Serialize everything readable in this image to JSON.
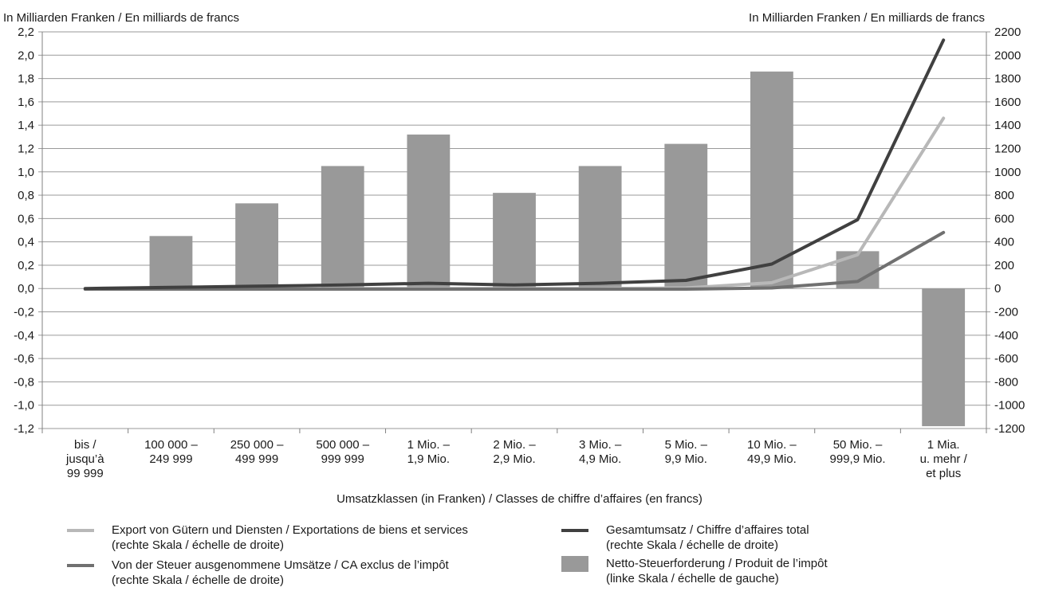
{
  "chart_data": {
    "type": "bar",
    "left_axis_title": "In Milliarden Franken / En milliards de francs",
    "right_axis_title": "In Milliarden Franken / En milliards de francs",
    "xlabel": "Umsatzklassen (in Franken) / Classes de chiffre d’affaires (en francs)",
    "categories": [
      [
        "bis /",
        "jusqu’à",
        "99 999"
      ],
      [
        "100 000 –",
        "249 999"
      ],
      [
        "250 000 –",
        "499 999"
      ],
      [
        "500 000 –",
        "999 999"
      ],
      [
        "1 Mio. –",
        "1,9 Mio."
      ],
      [
        "2 Mio. –",
        "2,9 Mio."
      ],
      [
        "3 Mio. –",
        "4,9 Mio."
      ],
      [
        "5 Mio. –",
        "9,9 Mio."
      ],
      [
        "10 Mio. –",
        "49,9 Mio."
      ],
      [
        "50 Mio. –",
        "999,9 Mio."
      ],
      [
        "1 Mia.",
        "u. mehr /",
        "et plus"
      ]
    ],
    "left_axis": {
      "ylim": [
        -1.2,
        2.2
      ],
      "ticks": [
        "2,2",
        "2,0",
        "1,8",
        "1,6",
        "1,4",
        "1,2",
        "1,0",
        "0,8",
        "0,6",
        "0,4",
        "0,2",
        "0,0",
        "-0,2",
        "-0,4",
        "-0,6",
        "-0,8",
        "-1,0",
        "-1,2"
      ]
    },
    "right_axis": {
      "ylim": [
        -1200,
        2200
      ],
      "ticks": [
        "2200",
        "2000",
        "1800",
        "1600",
        "1400",
        "1200",
        "1000",
        "800",
        "600",
        "400",
        "200",
        "0",
        "-200",
        "-400",
        "-600",
        "-800",
        "-1000",
        "-1200"
      ]
    },
    "grid": true,
    "series": [
      {
        "name": "Netto-Steuerforderung / Produit de l’impôt",
        "axis": "left",
        "kind": "bar",
        "color": "#999999",
        "values": [
          0.0,
          0.45,
          0.73,
          1.05,
          1.32,
          0.82,
          1.05,
          1.24,
          1.86,
          0.32,
          -1.18
        ]
      },
      {
        "name": "Gesamtumsatz / Chiffre d’affaires total",
        "axis": "right",
        "kind": "line",
        "color": "#404040",
        "values": [
          0,
          10,
          20,
          30,
          45,
          30,
          45,
          70,
          210,
          590,
          2130
        ]
      },
      {
        "name": "Export von Gütern und Diensten / Exportations de biens et services",
        "axis": "right",
        "kind": "line",
        "color": "#b8b8b8",
        "values": [
          -5,
          0,
          0,
          0,
          0,
          0,
          0,
          5,
          50,
          290,
          1460
        ]
      },
      {
        "name": "Von der Steuer ausgenommene Umsätze / CA exclus de l’impôt",
        "axis": "right",
        "kind": "line",
        "color": "#707070",
        "values": [
          -5,
          -5,
          -5,
          -5,
          -5,
          -5,
          -5,
          -5,
          5,
          60,
          480
        ]
      }
    ],
    "legend": [
      {
        "kind": "line",
        "color": "#b8b8b8",
        "line1": "Export von Gütern und Diensten / Exportations de biens et services",
        "line2": "(rechte Skala / échelle de droite)"
      },
      {
        "kind": "line",
        "color": "#404040",
        "line1": "Gesamtumsatz / Chiffre d’affaires total",
        "line2": "(rechte Skala / échelle de droite)"
      },
      {
        "kind": "line",
        "color": "#707070",
        "line1": "Von der Steuer ausgenommene Umsätze / CA exclus de l’impôt",
        "line2": "(rechte Skala / échelle de droite)"
      },
      {
        "kind": "box",
        "color": "#999999",
        "line1": "Netto-Steuerforderung / Produit de l’impôt",
        "line2": "(linke Skala / échelle de gauche)"
      }
    ]
  }
}
